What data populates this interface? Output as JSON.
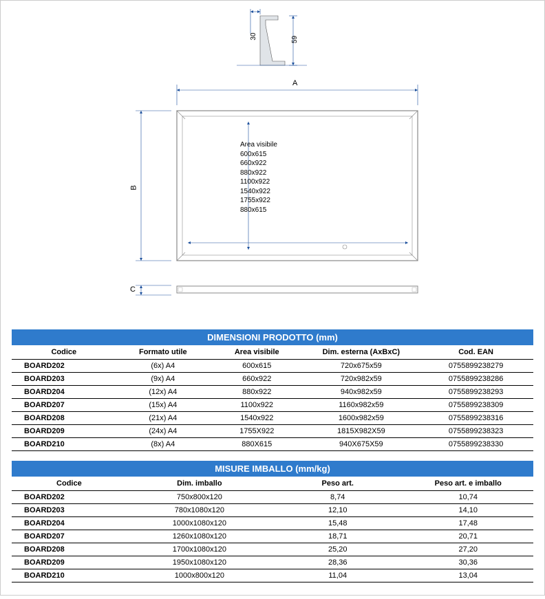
{
  "colors": {
    "header_bg": "#2f7bcc",
    "header_text": "#ffffff",
    "dim_line": "#1b4f9c",
    "row_line": "#000000",
    "profile_fill": "#e0e4e8"
  },
  "cross_section": {
    "dim_left": "30",
    "dim_right": "59"
  },
  "main_drawing": {
    "label_A": "A",
    "label_B": "B",
    "label_C": "C",
    "area_title": "Area visibile",
    "area_values": [
      "600x615",
      "660x922",
      "880x922",
      "1100x922",
      "1540x922",
      "1755x922",
      "880x615"
    ]
  },
  "table1": {
    "title": "DIMENSIONI PRODOTTO (mm)",
    "columns": [
      "Codice",
      "Formato utile",
      "Area visibile",
      "Dim. esterna (AxBxC)",
      "Cod. EAN"
    ],
    "rows": [
      [
        "BOARD202",
        "(6x) A4",
        "600x615",
        "720x675x59",
        "0755899238279"
      ],
      [
        "BOARD203",
        "(9x) A4",
        "660x922",
        "720x982x59",
        "0755899238286"
      ],
      [
        "BOARD204",
        "(12x) A4",
        "880x922",
        "940x982x59",
        "0755899238293"
      ],
      [
        "BOARD207",
        "(15x) A4",
        "1100x922",
        "1160x982x59",
        "0755899238309"
      ],
      [
        "BOARD208",
        "(21x) A4",
        "1540x922",
        "1600x982x59",
        "0755899238316"
      ],
      [
        "BOARD209",
        "(24x) A4",
        "1755X922",
        "1815X982X59",
        "0755899238323"
      ],
      [
        "BOARD210",
        "(8x) A4",
        "880X615",
        "940X675X59",
        "0755899238330"
      ]
    ],
    "col_widths": [
      "20%",
      "18%",
      "18%",
      "22%",
      "22%"
    ]
  },
  "table2": {
    "title": "MISURE IMBALLO (mm/kg)",
    "columns": [
      "Codice",
      "Dim. imballo",
      "Peso art.",
      "Peso art. e imballo"
    ],
    "rows": [
      [
        "BOARD202",
        "750x800x120",
        "8,74",
        "10,74"
      ],
      [
        "BOARD203",
        "780x1080x120",
        "12,10",
        "14,10"
      ],
      [
        "BOARD204",
        "1000x1080x120",
        "15,48",
        "17,48"
      ],
      [
        "BOARD207",
        "1260x1080x120",
        "18,71",
        "20,71"
      ],
      [
        "BOARD208",
        "1700x1080x120",
        "25,20",
        "27,20"
      ],
      [
        "BOARD209",
        "1950x1080x120",
        "28,36",
        "30,36"
      ],
      [
        "BOARD210",
        "1000x800x120",
        "11,04",
        "13,04"
      ]
    ],
    "col_widths": [
      "22%",
      "28%",
      "25%",
      "25%"
    ]
  }
}
